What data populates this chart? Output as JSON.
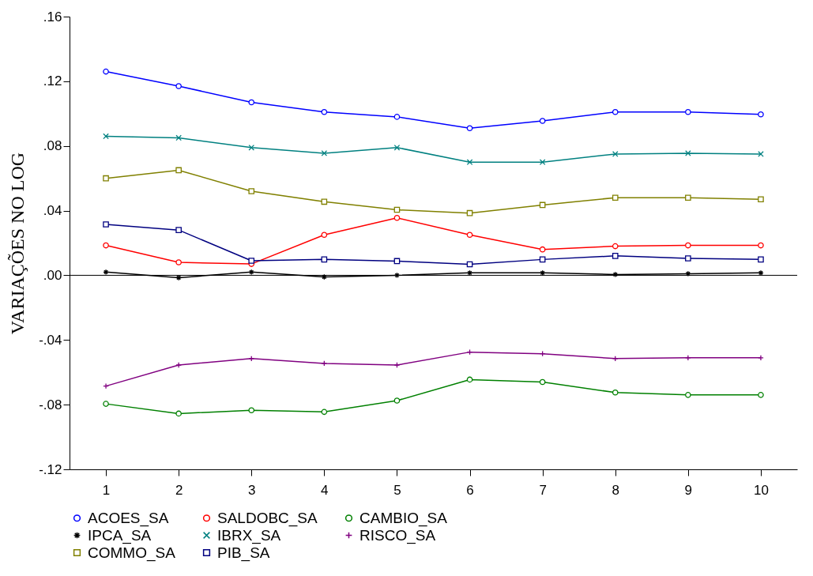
{
  "chart_data": {
    "type": "line",
    "ylabel": "VARIAÇÕES NO LOG",
    "categories": [
      "1",
      "2",
      "3",
      "4",
      "5",
      "6",
      "7",
      "8",
      "9",
      "10"
    ],
    "ylim": [
      -0.12,
      0.16
    ],
    "yticks": [
      {
        "value": -0.12,
        "label": "-.12"
      },
      {
        "value": -0.08,
        "label": "-.08"
      },
      {
        "value": -0.04,
        "label": "-.04"
      },
      {
        "value": 0,
        "label": ".00"
      },
      {
        "value": 0.04,
        "label": ".04"
      },
      {
        "value": 0.08,
        "label": ".08"
      },
      {
        "value": 0.12,
        "label": ".12"
      },
      {
        "value": 0.16,
        "label": ".16"
      }
    ],
    "grid": false,
    "legend": "bottom",
    "ref_lines": [
      {
        "axis": "y",
        "value": 0,
        "color": "#000000"
      }
    ],
    "series": [
      {
        "name": "ACOES_SA",
        "color": "#0000ff",
        "marker": "circle",
        "values": [
          0.126,
          0.117,
          0.107,
          0.101,
          0.098,
          0.091,
          0.0955,
          0.101,
          0.101,
          0.0995
        ]
      },
      {
        "name": "SALDOBC_SA",
        "color": "#ff0000",
        "marker": "circle",
        "values": [
          0.0185,
          0.008,
          0.007,
          0.025,
          0.0355,
          0.025,
          0.016,
          0.018,
          0.0185,
          0.0185
        ]
      },
      {
        "name": "CAMBIO_SA",
        "color": "#008000",
        "marker": "circle",
        "values": [
          -0.0795,
          -0.0855,
          -0.0835,
          -0.0845,
          -0.0775,
          -0.0645,
          -0.066,
          -0.0725,
          -0.074,
          -0.074
        ]
      },
      {
        "name": "IPCA_SA",
        "color": "#000000",
        "marker": "cross",
        "values": [
          0.002,
          -0.0015,
          0.002,
          -0.001,
          0.0,
          0.0015,
          0.0015,
          0.0005,
          0.001,
          0.0015
        ]
      },
      {
        "name": "IBRX_SA",
        "color": "#008080",
        "marker": "x",
        "values": [
          0.086,
          0.085,
          0.079,
          0.0755,
          0.079,
          0.07,
          0.07,
          0.075,
          0.0755,
          0.075
        ]
      },
      {
        "name": "RISCO_SA",
        "color": "#800080",
        "marker": "plus",
        "values": [
          -0.0685,
          -0.0555,
          -0.0515,
          -0.0545,
          -0.0555,
          -0.0475,
          -0.0485,
          -0.0515,
          -0.051,
          -0.051
        ]
      },
      {
        "name": "COMMO_SA",
        "color": "#808000",
        "marker": "square",
        "values": [
          0.06,
          0.065,
          0.052,
          0.0455,
          0.0405,
          0.0385,
          0.0435,
          0.048,
          0.048,
          0.047
        ]
      },
      {
        "name": "PIB_SA",
        "color": "#000080",
        "marker": "square",
        "values": [
          0.0315,
          0.028,
          0.009,
          0.0098,
          0.0088,
          0.0068,
          0.0098,
          0.012,
          0.0105,
          0.0098
        ]
      }
    ]
  }
}
